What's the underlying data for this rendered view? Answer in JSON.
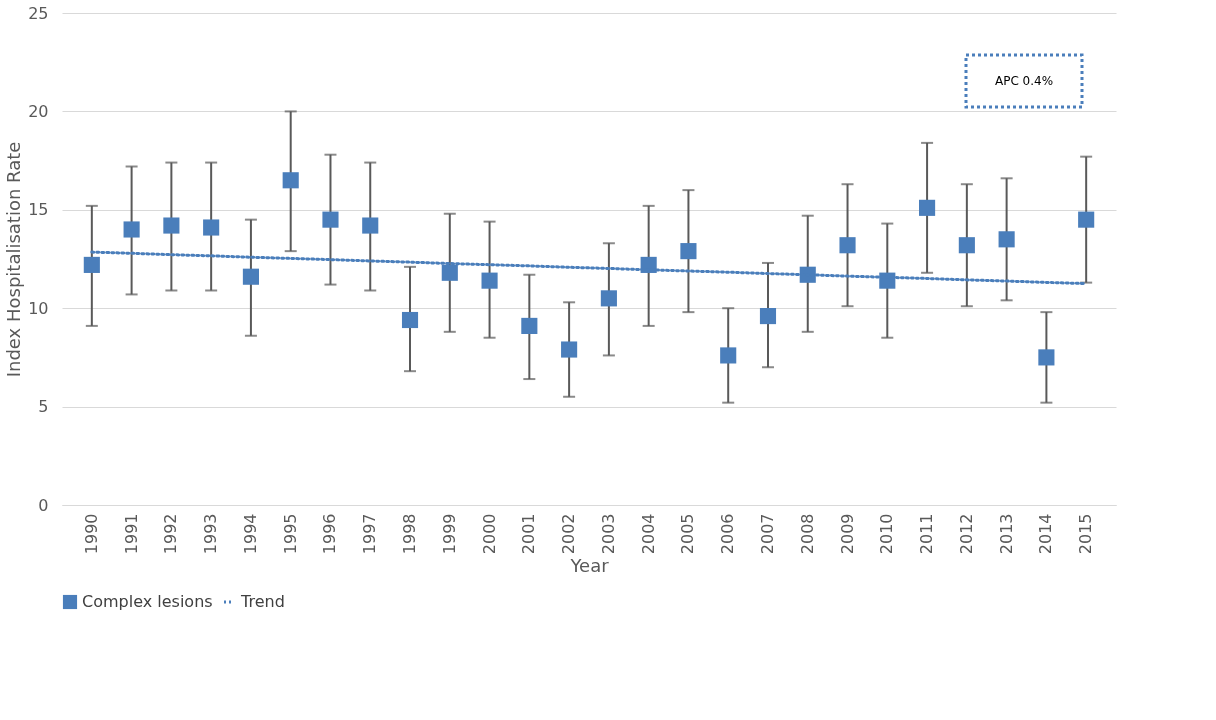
{
  "chart_data": {
    "type": "scatter",
    "xlabel": "Year",
    "ylabel": "Index Hospitalisation Rate",
    "categories": [
      "1990",
      "1991",
      "1992",
      "1993",
      "1994",
      "1995",
      "1996",
      "1997",
      "1998",
      "1999",
      "2000",
      "2001",
      "2002",
      "2003",
      "2004",
      "2005",
      "2006",
      "2007",
      "2008",
      "2009",
      "2010",
      "2011",
      "2012",
      "2013",
      "2014",
      "2015"
    ],
    "series": [
      {
        "name": "Complex lesions",
        "color": "#4a7ebb",
        "marker": "square",
        "values": [
          12.2,
          14.0,
          14.2,
          14.1,
          11.6,
          16.5,
          14.5,
          14.2,
          9.4,
          11.8,
          11.4,
          9.1,
          7.9,
          10.5,
          12.2,
          12.9,
          7.6,
          9.6,
          11.7,
          13.2,
          11.4,
          15.1,
          13.2,
          13.5,
          7.5,
          14.5
        ],
        "errors": [
          [
            9.1,
            15.2
          ],
          [
            10.7,
            17.2
          ],
          [
            10.9,
            17.4
          ],
          [
            10.9,
            17.4
          ],
          [
            8.6,
            14.5
          ],
          [
            12.9,
            20.0
          ],
          [
            11.2,
            17.8
          ],
          [
            10.9,
            17.4
          ],
          [
            6.8,
            12.1
          ],
          [
            8.8,
            14.8
          ],
          [
            8.5,
            14.4
          ],
          [
            6.4,
            11.7
          ],
          [
            5.5,
            10.3
          ],
          [
            7.6,
            13.3
          ],
          [
            9.1,
            15.2
          ],
          [
            9.8,
            16.0
          ],
          [
            5.2,
            10.0
          ],
          [
            7.0,
            12.3
          ],
          [
            8.8,
            14.7
          ],
          [
            10.1,
            16.3
          ],
          [
            8.5,
            14.3
          ],
          [
            11.8,
            18.4
          ],
          [
            10.1,
            16.3
          ],
          [
            10.4,
            16.6
          ],
          [
            5.2,
            9.8
          ],
          [
            11.3,
            17.7
          ]
        ]
      },
      {
        "name": "Trend",
        "type": "line",
        "color": "#4a7ebb",
        "line_style": "dotted",
        "values": [
          12.85,
          12.79,
          12.72,
          12.66,
          12.59,
          12.53,
          12.47,
          12.4,
          12.34,
          12.27,
          12.21,
          12.15,
          12.08,
          12.02,
          11.95,
          11.89,
          11.83,
          11.76,
          11.7,
          11.63,
          11.57,
          11.51,
          11.44,
          11.38,
          11.31,
          11.25
        ]
      }
    ],
    "ylim": [
      0,
      25
    ],
    "yticks": [
      0,
      5,
      10,
      15,
      20,
      25
    ],
    "grid": "y",
    "legend": "bottom",
    "annotations": [
      "APC 0.4%"
    ]
  }
}
